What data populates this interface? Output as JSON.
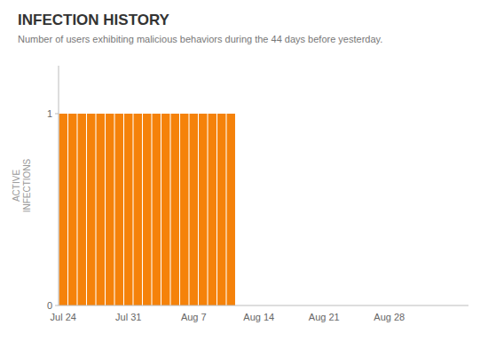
{
  "chart_data": {
    "type": "bar",
    "title": "INFECTION HISTORY",
    "subtitle": "Number of users exhibiting malicious behaviors during the 44 days before yesterday.",
    "y_label": "ACTIVE\nINFECTIONS",
    "categories": [
      "Jul 24",
      null,
      null,
      null,
      null,
      null,
      null,
      "Jul 31",
      null,
      null,
      null,
      null,
      null,
      null,
      "Aug 7",
      null,
      null,
      null,
      null,
      null,
      null,
      "Aug 14",
      null,
      null,
      null,
      null,
      null,
      null,
      "Aug 21",
      null,
      null,
      null,
      null,
      null,
      null,
      "Aug 28",
      null,
      null,
      null,
      null,
      null,
      null,
      null,
      null
    ],
    "values": [
      1,
      1,
      1,
      1,
      1,
      1,
      1,
      1,
      1,
      1,
      1,
      1,
      1,
      1,
      1,
      1,
      1,
      1,
      1,
      0,
      0,
      0,
      0,
      0,
      0,
      0,
      0,
      0,
      0,
      0,
      0,
      0,
      0,
      0,
      0,
      0,
      0,
      0,
      0,
      0,
      0,
      0,
      0,
      0
    ],
    "color": "#f5820a",
    "ylim": [
      0,
      1.25
    ],
    "yticks": [
      0,
      1
    ],
    "grid": false
  }
}
